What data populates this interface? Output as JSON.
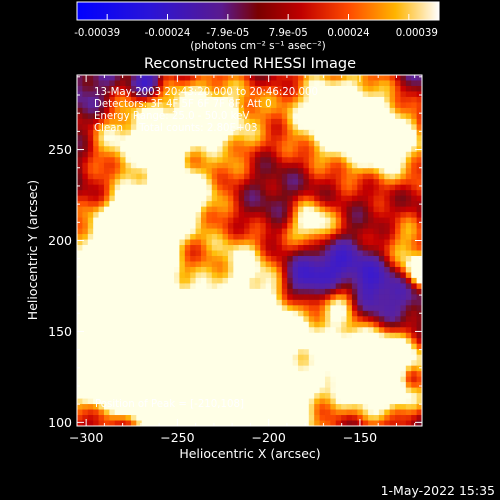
{
  "colorbar": {
    "tick_labels": [
      "-0.00039",
      "-0.00024",
      "-7.9e-05",
      "7.9e-05",
      "0.00024",
      "0.00039"
    ],
    "unit_label": "(photons cm⁻² s⁻¹ asec⁻²)",
    "range": [
      -0.00039,
      0.00039
    ]
  },
  "chart_data": {
    "type": "heatmap",
    "title": "Reconstructed RHESSI Image",
    "xlabel": "Heliocentric X (arcsec)",
    "ylabel": "Heliocentric Y (arcsec)",
    "xlim": [
      -305,
      -116
    ],
    "ylim": [
      98,
      291
    ],
    "x_ticks": [
      -300,
      -250,
      -200,
      -150
    ],
    "x_tick_labels": [
      "−300",
      "−250",
      "−200",
      "−150"
    ],
    "y_ticks": [
      100,
      150,
      200,
      250
    ],
    "y_tick_labels": [
      "100",
      "150",
      "200",
      "250"
    ],
    "annotations": [
      "13-May-2003 20:43:20.000 to 20:46:20.000",
      "Detectors: 3F 4F 5F 6F 7F 8F, Att 0",
      "Energy Range: 25.0 - 50.0 keV",
      "Clean     Total counts: 2.80E+03"
    ],
    "peak_label": "Position of Peak = [-210,108]",
    "peak_position": [
      -210,
      108
    ],
    "colormap": "blue-purple-red-yellow-white"
  },
  "footer": {
    "timestamp": "1-May-2022 15:35"
  }
}
